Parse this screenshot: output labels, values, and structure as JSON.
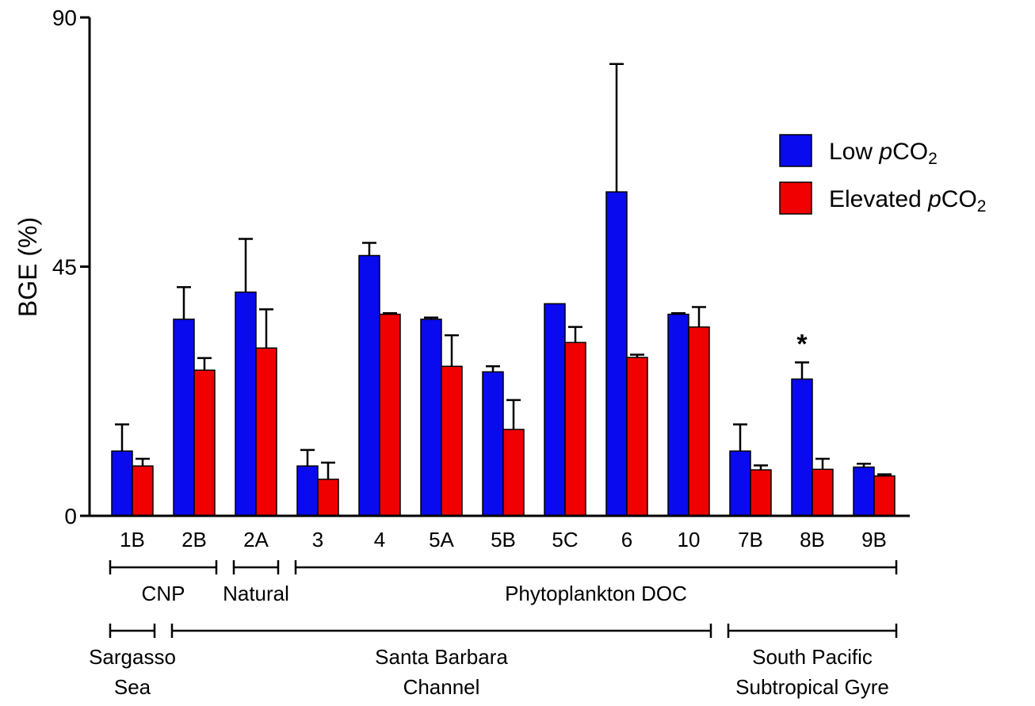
{
  "chart_data": {
    "type": "bar",
    "ylabel": "BGE (%)",
    "ylim": [
      0,
      90
    ],
    "yticks": [
      "0",
      "45",
      "90"
    ],
    "categories": [
      "1B",
      "2B",
      "2A",
      "3",
      "4",
      "5A",
      "5B",
      "5C",
      "6",
      "10",
      "7B",
      "8B",
      "9B"
    ],
    "series": [
      {
        "name_prefix": "Low ",
        "name_italic": "p",
        "name_main": "CO",
        "name_sub": "2",
        "color": "#0a0aee",
        "values": [
          11.7,
          35.5,
          40.4,
          9.0,
          47.0,
          35.5,
          26.0,
          38.3,
          58.5,
          36.4,
          11.7,
          24.7,
          8.8
        ],
        "errors": [
          4.8,
          5.8,
          9.6,
          2.9,
          2.3,
          0.3,
          1.0,
          0.0,
          23.1,
          0.2,
          4.8,
          3.0,
          0.6
        ]
      },
      {
        "name_prefix": "Elevated ",
        "name_italic": "p",
        "name_main": "CO",
        "name_sub": "2",
        "color": "#f00000",
        "values": [
          9.0,
          26.3,
          30.3,
          6.6,
          36.4,
          27.0,
          15.6,
          31.3,
          28.6,
          34.1,
          8.3,
          8.4,
          7.2
        ],
        "errors": [
          1.3,
          2.2,
          7.0,
          3.0,
          0.2,
          5.6,
          5.3,
          2.8,
          0.5,
          3.6,
          0.8,
          1.9,
          0.3
        ]
      }
    ],
    "annotations": [
      {
        "category": "8B",
        "text": "*"
      }
    ],
    "groups_row1": [
      {
        "label": "CNP",
        "from": "1B",
        "to": "2B"
      },
      {
        "label": "Natural",
        "from": "2A",
        "to": "2A"
      },
      {
        "label": "Phytoplankton DOC",
        "from": "3",
        "to": "9B"
      }
    ],
    "groups_row2": [
      {
        "line1": "Sargasso",
        "line2": "Sea",
        "from": "1B",
        "to": "1B"
      },
      {
        "line1": "Santa Barbara",
        "line2": "Channel",
        "from": "2B",
        "to": "10"
      },
      {
        "line1": "South Pacific",
        "line2": "Subtropical Gyre",
        "from": "7B",
        "to": "9B"
      }
    ],
    "legend_position": "top-right",
    "grid": false
  }
}
